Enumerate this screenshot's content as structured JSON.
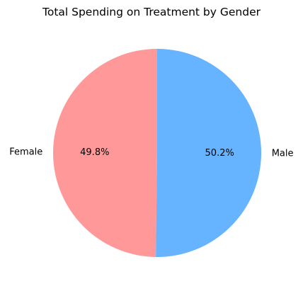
{
  "chart_data": {
    "type": "pie",
    "title": "Total Spending on Treatment by Gender",
    "categories": [
      "Female",
      "Male"
    ],
    "values": [
      49.8,
      50.2
    ],
    "value_labels": [
      "49.8%",
      "50.2%"
    ],
    "colors": [
      "#ff9999",
      "#66b3ff"
    ],
    "start_angle": 90,
    "direction": "counterclockwise",
    "legend": "none"
  }
}
